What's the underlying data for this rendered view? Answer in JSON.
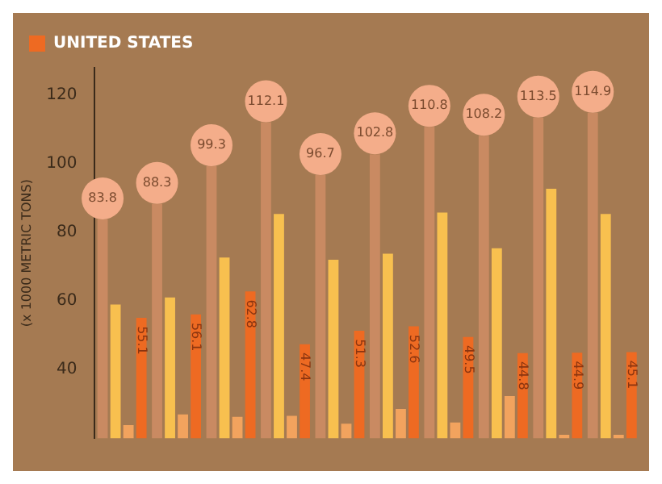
{
  "chart_data": {
    "type": "bar",
    "ylabel": "(x 1000 METRIC TONS)",
    "categories": [
      null,
      null,
      null,
      null,
      null,
      null,
      null,
      null,
      null,
      null
    ],
    "series": [
      {
        "color": "#c98a62",
        "values": [
          83.8,
          88.3,
          99.3,
          112.1,
          96.7,
          102.8,
          110.8,
          108.2,
          113.5,
          114.9
        ],
        "value_labels": [
          "83.8",
          "88.3",
          "99.3",
          "112.1",
          "96.7",
          "102.8",
          "110.8",
          "108.2",
          "113.5",
          "114.9"
        ]
      },
      {
        "color": "#f8c04f",
        "values": [
          59,
          61,
          72.7,
          85.4,
          72,
          73.8,
          85.8,
          75.4,
          92.7,
          85.4
        ]
      },
      {
        "color": "#f2a35e",
        "values": [
          23.8,
          26.9,
          26.2,
          26.5,
          24.2,
          28.5,
          24.6,
          32.3,
          21,
          21
        ]
      },
      {
        "name": "UNITED STATES",
        "color": "#ee6a22",
        "values": [
          55.1,
          56.1,
          62.8,
          47.4,
          51.3,
          52.6,
          49.5,
          44.8,
          44.9,
          45.1
        ],
        "value_labels": [
          "55.1",
          "56.1",
          "62.8",
          "47.4",
          "51.3",
          "52.6",
          "49.5",
          "44.8",
          "44.9",
          "45.1"
        ]
      }
    ],
    "ylim": [
      20,
      128
    ],
    "yticks": [
      40,
      60,
      80,
      100,
      120
    ],
    "grid": false,
    "legend": "top left"
  }
}
